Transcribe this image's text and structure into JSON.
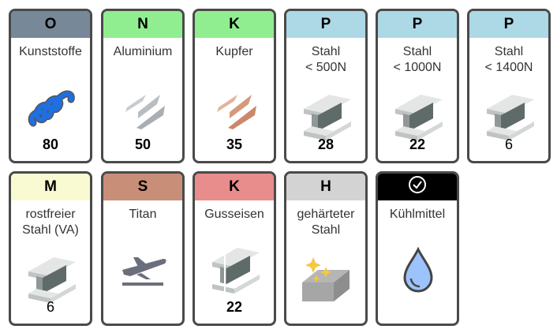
{
  "cards": [
    {
      "code": "O",
      "color": "#778899",
      "name": "Kunststoffe",
      "value": "80",
      "bold": true,
      "icon": "plastic-spiral-icon"
    },
    {
      "code": "N",
      "color": "#90EE90",
      "name": "Aluminium",
      "value": "50",
      "bold": true,
      "icon": "aluminium-chips-icon"
    },
    {
      "code": "K",
      "color": "#90EE90",
      "name": "Kupfer",
      "value": "35",
      "bold": true,
      "icon": "copper-chips-icon"
    },
    {
      "code": "P",
      "color": "#ADD8E6",
      "name": "Stahl\n< 500N",
      "value": "28",
      "bold": true,
      "icon": "steel-beam-icon"
    },
    {
      "code": "P",
      "color": "#ADD8E6",
      "name": "Stahl\n< 1000N",
      "value": "22",
      "bold": true,
      "icon": "steel-beam-icon"
    },
    {
      "code": "P",
      "color": "#ADD8E6",
      "name": "Stahl\n< 1400N",
      "value": "6",
      "bold": false,
      "icon": "steel-beam-icon"
    },
    {
      "code": "M",
      "color": "#FAFAD2",
      "name": "rostfreier\nStahl (VA)",
      "value": "6",
      "bold": false,
      "icon": "steel-beam-icon"
    },
    {
      "code": "S",
      "color": "#C88E78",
      "name": "Titan",
      "value": "",
      "bold": false,
      "icon": "airplane-icon"
    },
    {
      "code": "K",
      "color": "#E88C8C",
      "name": "Gusseisen",
      "value": "22",
      "bold": true,
      "icon": "cast-iron-beam-icon"
    },
    {
      "code": "H",
      "color": "#D3D3D3",
      "name": "gehärteter\nStahl",
      "value": "",
      "bold": false,
      "icon": "hardened-steel-icon"
    },
    {
      "code": "",
      "color": "#000000",
      "name": "Kühlmittel",
      "value": "",
      "bold": false,
      "icon": "coolant-drop-icon",
      "header_icon": "check-circle-icon"
    }
  ]
}
